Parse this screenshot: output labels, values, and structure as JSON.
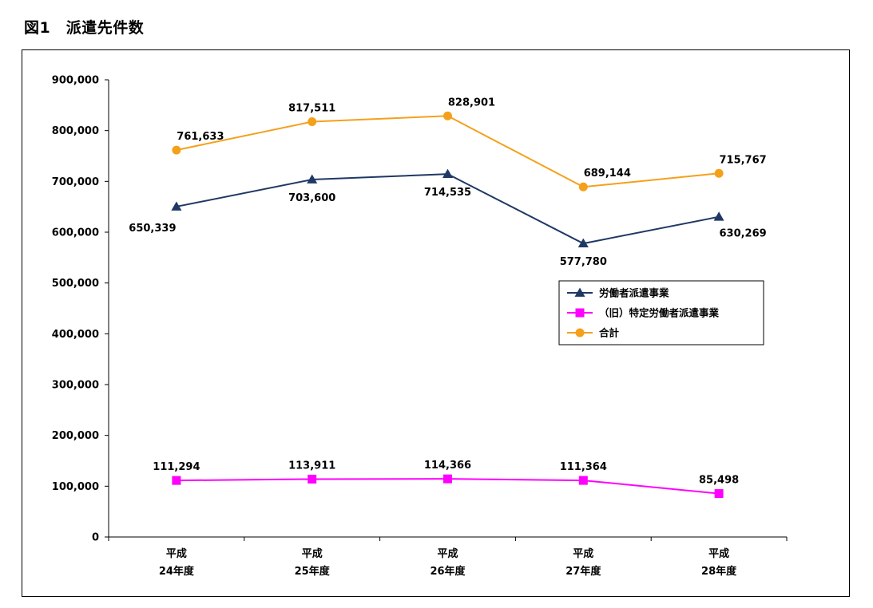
{
  "figure_title": "図1　派遣先件数",
  "chart_data": {
    "type": "line",
    "title": "図1　派遣先件数",
    "xlabel": "",
    "ylabel": "",
    "ylim": [
      0,
      900000
    ],
    "yticks": [
      0,
      100000,
      200000,
      300000,
      400000,
      500000,
      600000,
      700000,
      800000,
      900000
    ],
    "ytick_labels": [
      "0",
      "100,000",
      "200,000",
      "300,000",
      "400,000",
      "500,000",
      "600,000",
      "700,000",
      "800,000",
      "900,000"
    ],
    "grid": false,
    "legend_position": "middle-right",
    "categories": [
      {
        "line1": "平成",
        "line2": "24年度"
      },
      {
        "line1": "平成",
        "line2": "25年度"
      },
      {
        "line1": "平成",
        "line2": "26年度"
      },
      {
        "line1": "平成",
        "line2": "27年度"
      },
      {
        "line1": "平成",
        "line2": "28年度"
      }
    ],
    "series": [
      {
        "name": "労働者派遣事業",
        "color": "#1F3864",
        "marker": "triangle",
        "values": [
          650339,
          703600,
          714535,
          577780,
          630269
        ],
        "labels": [
          "650,339",
          "703,600",
          "714,535",
          "577,780",
          "630,269"
        ],
        "label_position": [
          "below-left",
          "below",
          "below",
          "below",
          "below-right"
        ]
      },
      {
        "name": "（旧）特定労働者派遣事業",
        "color": "#FF00FF",
        "marker": "square",
        "values": [
          111294,
          113911,
          114366,
          111364,
          85498
        ],
        "labels": [
          "111,294",
          "113,911",
          "114,366",
          "111,364",
          "85,498"
        ],
        "label_position": [
          "above",
          "above",
          "above",
          "above",
          "above"
        ]
      },
      {
        "name": "合計",
        "color": "#F5A01A",
        "marker": "circle",
        "values": [
          761633,
          817511,
          828901,
          689144,
          715767
        ],
        "labels": [
          "761,633",
          "817,511",
          "828,901",
          "689,144",
          "715,767"
        ],
        "label_position": [
          "above-right",
          "above",
          "above-right",
          "above-right",
          "above-right"
        ]
      }
    ]
  }
}
